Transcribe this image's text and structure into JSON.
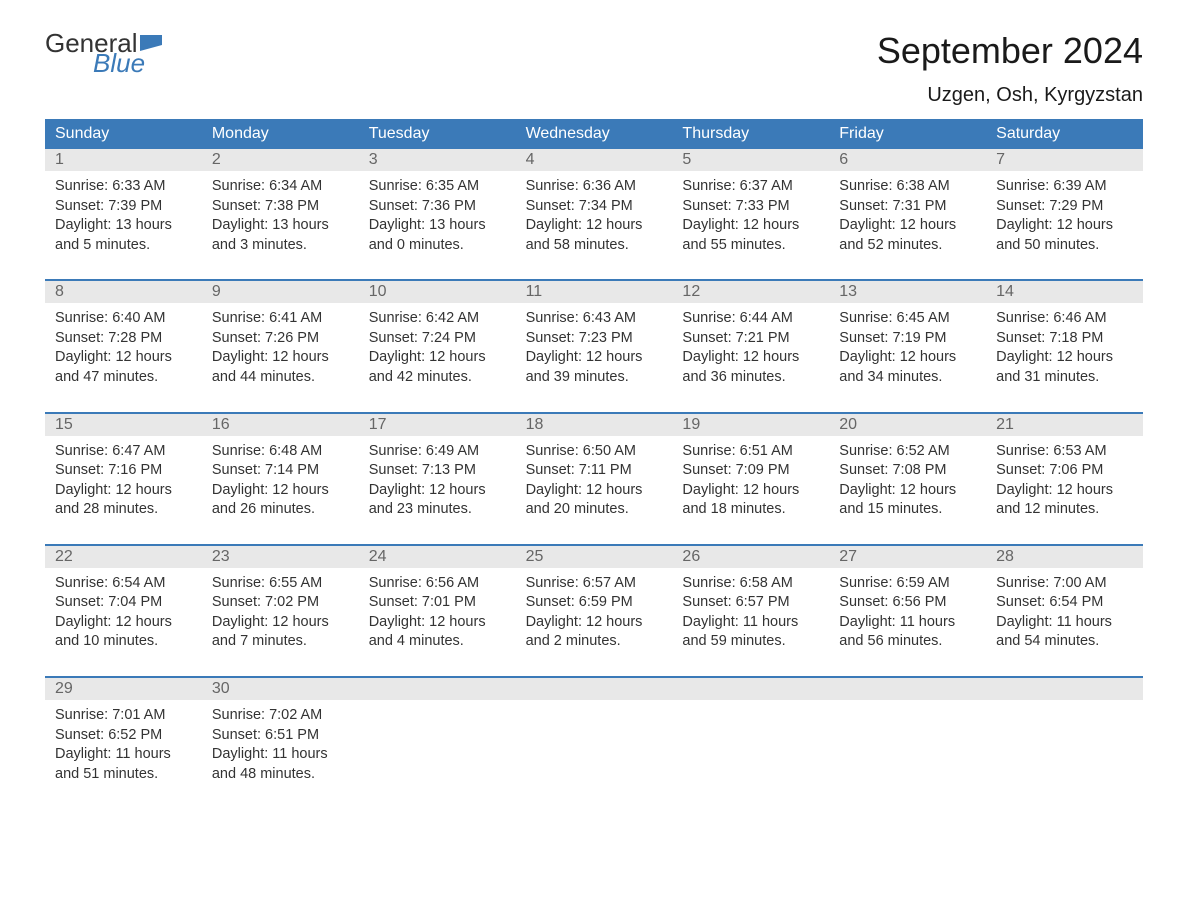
{
  "brand": {
    "text_general": "General",
    "text_blue": "Blue",
    "flag_color": "#3b7ab8"
  },
  "title": {
    "month": "September 2024",
    "location": "Uzgen, Osh, Kyrgyzstan"
  },
  "colors": {
    "header_bg": "#3b7ab8",
    "header_text": "#ffffff",
    "number_bg": "#e8e8e8",
    "number_text": "#666666",
    "body_text": "#333333",
    "week_border": "#3b7ab8"
  },
  "typography": {
    "title_fontsize": 36,
    "location_fontsize": 20,
    "header_fontsize": 16,
    "number_fontsize": 16,
    "content_fontsize": 14.5
  },
  "day_headers": [
    "Sunday",
    "Monday",
    "Tuesday",
    "Wednesday",
    "Thursday",
    "Friday",
    "Saturday"
  ],
  "weeks": [
    {
      "days": [
        {
          "num": "1",
          "sunrise": "Sunrise: 6:33 AM",
          "sunset": "Sunset: 7:39 PM",
          "daylight1": "Daylight: 13 hours",
          "daylight2": "and 5 minutes."
        },
        {
          "num": "2",
          "sunrise": "Sunrise: 6:34 AM",
          "sunset": "Sunset: 7:38 PM",
          "daylight1": "Daylight: 13 hours",
          "daylight2": "and 3 minutes."
        },
        {
          "num": "3",
          "sunrise": "Sunrise: 6:35 AM",
          "sunset": "Sunset: 7:36 PM",
          "daylight1": "Daylight: 13 hours",
          "daylight2": "and 0 minutes."
        },
        {
          "num": "4",
          "sunrise": "Sunrise: 6:36 AM",
          "sunset": "Sunset: 7:34 PM",
          "daylight1": "Daylight: 12 hours",
          "daylight2": "and 58 minutes."
        },
        {
          "num": "5",
          "sunrise": "Sunrise: 6:37 AM",
          "sunset": "Sunset: 7:33 PM",
          "daylight1": "Daylight: 12 hours",
          "daylight2": "and 55 minutes."
        },
        {
          "num": "6",
          "sunrise": "Sunrise: 6:38 AM",
          "sunset": "Sunset: 7:31 PM",
          "daylight1": "Daylight: 12 hours",
          "daylight2": "and 52 minutes."
        },
        {
          "num": "7",
          "sunrise": "Sunrise: 6:39 AM",
          "sunset": "Sunset: 7:29 PM",
          "daylight1": "Daylight: 12 hours",
          "daylight2": "and 50 minutes."
        }
      ]
    },
    {
      "days": [
        {
          "num": "8",
          "sunrise": "Sunrise: 6:40 AM",
          "sunset": "Sunset: 7:28 PM",
          "daylight1": "Daylight: 12 hours",
          "daylight2": "and 47 minutes."
        },
        {
          "num": "9",
          "sunrise": "Sunrise: 6:41 AM",
          "sunset": "Sunset: 7:26 PM",
          "daylight1": "Daylight: 12 hours",
          "daylight2": "and 44 minutes."
        },
        {
          "num": "10",
          "sunrise": "Sunrise: 6:42 AM",
          "sunset": "Sunset: 7:24 PM",
          "daylight1": "Daylight: 12 hours",
          "daylight2": "and 42 minutes."
        },
        {
          "num": "11",
          "sunrise": "Sunrise: 6:43 AM",
          "sunset": "Sunset: 7:23 PM",
          "daylight1": "Daylight: 12 hours",
          "daylight2": "and 39 minutes."
        },
        {
          "num": "12",
          "sunrise": "Sunrise: 6:44 AM",
          "sunset": "Sunset: 7:21 PM",
          "daylight1": "Daylight: 12 hours",
          "daylight2": "and 36 minutes."
        },
        {
          "num": "13",
          "sunrise": "Sunrise: 6:45 AM",
          "sunset": "Sunset: 7:19 PM",
          "daylight1": "Daylight: 12 hours",
          "daylight2": "and 34 minutes."
        },
        {
          "num": "14",
          "sunrise": "Sunrise: 6:46 AM",
          "sunset": "Sunset: 7:18 PM",
          "daylight1": "Daylight: 12 hours",
          "daylight2": "and 31 minutes."
        }
      ]
    },
    {
      "days": [
        {
          "num": "15",
          "sunrise": "Sunrise: 6:47 AM",
          "sunset": "Sunset: 7:16 PM",
          "daylight1": "Daylight: 12 hours",
          "daylight2": "and 28 minutes."
        },
        {
          "num": "16",
          "sunrise": "Sunrise: 6:48 AM",
          "sunset": "Sunset: 7:14 PM",
          "daylight1": "Daylight: 12 hours",
          "daylight2": "and 26 minutes."
        },
        {
          "num": "17",
          "sunrise": "Sunrise: 6:49 AM",
          "sunset": "Sunset: 7:13 PM",
          "daylight1": "Daylight: 12 hours",
          "daylight2": "and 23 minutes."
        },
        {
          "num": "18",
          "sunrise": "Sunrise: 6:50 AM",
          "sunset": "Sunset: 7:11 PM",
          "daylight1": "Daylight: 12 hours",
          "daylight2": "and 20 minutes."
        },
        {
          "num": "19",
          "sunrise": "Sunrise: 6:51 AM",
          "sunset": "Sunset: 7:09 PM",
          "daylight1": "Daylight: 12 hours",
          "daylight2": "and 18 minutes."
        },
        {
          "num": "20",
          "sunrise": "Sunrise: 6:52 AM",
          "sunset": "Sunset: 7:08 PM",
          "daylight1": "Daylight: 12 hours",
          "daylight2": "and 15 minutes."
        },
        {
          "num": "21",
          "sunrise": "Sunrise: 6:53 AM",
          "sunset": "Sunset: 7:06 PM",
          "daylight1": "Daylight: 12 hours",
          "daylight2": "and 12 minutes."
        }
      ]
    },
    {
      "days": [
        {
          "num": "22",
          "sunrise": "Sunrise: 6:54 AM",
          "sunset": "Sunset: 7:04 PM",
          "daylight1": "Daylight: 12 hours",
          "daylight2": "and 10 minutes."
        },
        {
          "num": "23",
          "sunrise": "Sunrise: 6:55 AM",
          "sunset": "Sunset: 7:02 PM",
          "daylight1": "Daylight: 12 hours",
          "daylight2": "and 7 minutes."
        },
        {
          "num": "24",
          "sunrise": "Sunrise: 6:56 AM",
          "sunset": "Sunset: 7:01 PM",
          "daylight1": "Daylight: 12 hours",
          "daylight2": "and 4 minutes."
        },
        {
          "num": "25",
          "sunrise": "Sunrise: 6:57 AM",
          "sunset": "Sunset: 6:59 PM",
          "daylight1": "Daylight: 12 hours",
          "daylight2": "and 2 minutes."
        },
        {
          "num": "26",
          "sunrise": "Sunrise: 6:58 AM",
          "sunset": "Sunset: 6:57 PM",
          "daylight1": "Daylight: 11 hours",
          "daylight2": "and 59 minutes."
        },
        {
          "num": "27",
          "sunrise": "Sunrise: 6:59 AM",
          "sunset": "Sunset: 6:56 PM",
          "daylight1": "Daylight: 11 hours",
          "daylight2": "and 56 minutes."
        },
        {
          "num": "28",
          "sunrise": "Sunrise: 7:00 AM",
          "sunset": "Sunset: 6:54 PM",
          "daylight1": "Daylight: 11 hours",
          "daylight2": "and 54 minutes."
        }
      ]
    },
    {
      "days": [
        {
          "num": "29",
          "sunrise": "Sunrise: 7:01 AM",
          "sunset": "Sunset: 6:52 PM",
          "daylight1": "Daylight: 11 hours",
          "daylight2": "and 51 minutes."
        },
        {
          "num": "30",
          "sunrise": "Sunrise: 7:02 AM",
          "sunset": "Sunset: 6:51 PM",
          "daylight1": "Daylight: 11 hours",
          "daylight2": "and 48 minutes."
        },
        {
          "num": "",
          "sunrise": "",
          "sunset": "",
          "daylight1": "",
          "daylight2": ""
        },
        {
          "num": "",
          "sunrise": "",
          "sunset": "",
          "daylight1": "",
          "daylight2": ""
        },
        {
          "num": "",
          "sunrise": "",
          "sunset": "",
          "daylight1": "",
          "daylight2": ""
        },
        {
          "num": "",
          "sunrise": "",
          "sunset": "",
          "daylight1": "",
          "daylight2": ""
        },
        {
          "num": "",
          "sunrise": "",
          "sunset": "",
          "daylight1": "",
          "daylight2": ""
        }
      ]
    }
  ]
}
